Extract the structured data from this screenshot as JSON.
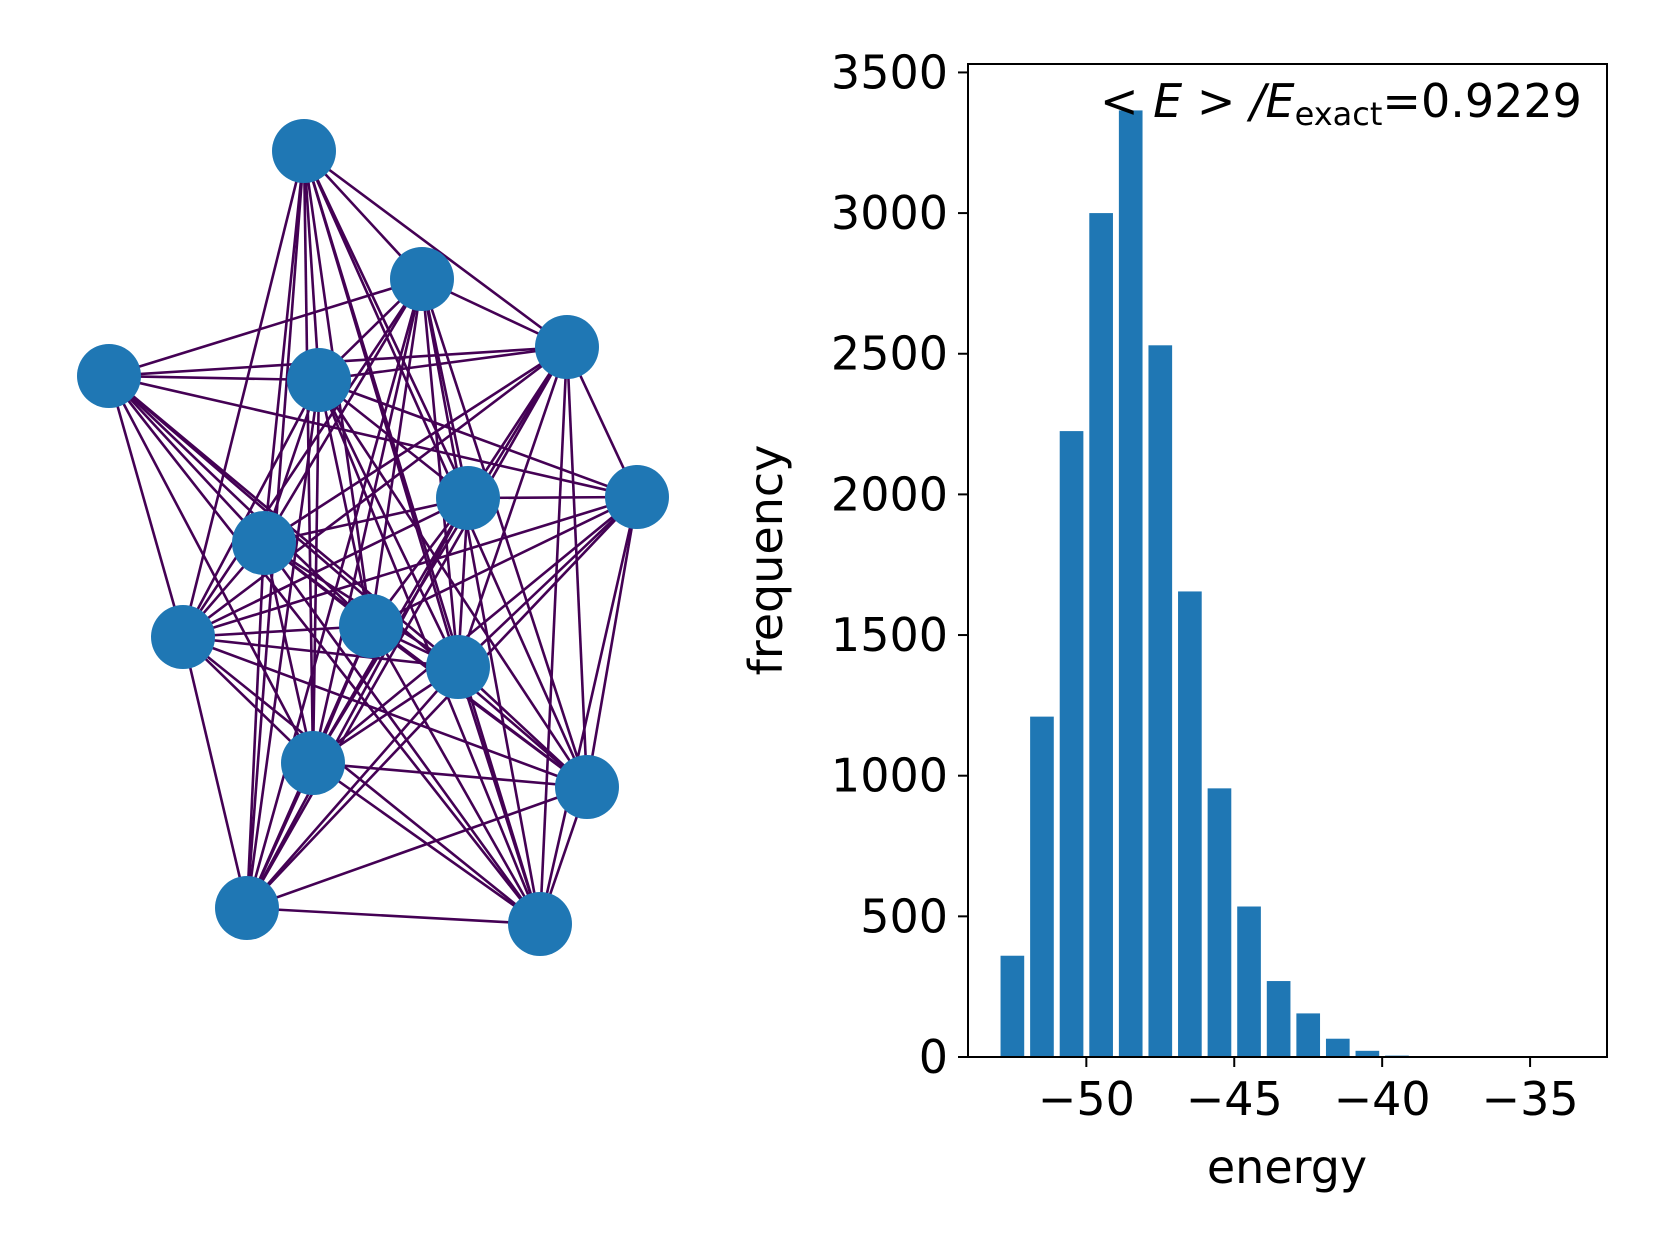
{
  "chart_data": [
    {
      "type": "network",
      "nodes": [
        {
          "id": 0
        },
        {
          "id": 1
        },
        {
          "id": 2
        },
        {
          "id": 3
        },
        {
          "id": 4
        },
        {
          "id": 5
        },
        {
          "id": 6
        },
        {
          "id": 7
        },
        {
          "id": 8
        },
        {
          "id": 9
        },
        {
          "id": 10
        },
        {
          "id": 11
        },
        {
          "id": 12
        },
        {
          "id": 13
        },
        {
          "id": 14
        }
      ],
      "edges": [
        [
          0,
          1
        ],
        [
          0,
          2
        ],
        [
          0,
          4
        ],
        [
          0,
          5
        ],
        [
          0,
          7
        ],
        [
          0,
          8
        ],
        [
          0,
          9
        ],
        [
          0,
          10
        ],
        [
          0,
          11
        ],
        [
          0,
          12
        ],
        [
          0,
          13
        ],
        [
          0,
          14
        ],
        [
          1,
          2
        ],
        [
          1,
          3
        ],
        [
          1,
          4
        ],
        [
          1,
          5
        ],
        [
          1,
          7
        ],
        [
          1,
          8
        ],
        [
          1,
          9
        ],
        [
          1,
          10
        ],
        [
          1,
          11
        ],
        [
          1,
          12
        ],
        [
          1,
          13
        ],
        [
          1,
          14
        ],
        [
          2,
          3
        ],
        [
          2,
          4
        ],
        [
          2,
          5
        ],
        [
          2,
          6
        ],
        [
          2,
          7
        ],
        [
          2,
          8
        ],
        [
          2,
          10
        ],
        [
          2,
          11
        ],
        [
          2,
          12
        ],
        [
          2,
          13
        ],
        [
          2,
          14
        ],
        [
          3,
          4
        ],
        [
          3,
          6
        ],
        [
          3,
          7
        ],
        [
          3,
          8
        ],
        [
          3,
          9
        ],
        [
          3,
          10
        ],
        [
          3,
          11
        ],
        [
          3,
          12
        ],
        [
          3,
          14
        ],
        [
          4,
          5
        ],
        [
          4,
          6
        ],
        [
          4,
          7
        ],
        [
          4,
          8
        ],
        [
          4,
          9
        ],
        [
          4,
          10
        ],
        [
          4,
          11
        ],
        [
          4,
          12
        ],
        [
          4,
          13
        ],
        [
          4,
          14
        ],
        [
          5,
          6
        ],
        [
          5,
          7
        ],
        [
          5,
          8
        ],
        [
          5,
          9
        ],
        [
          5,
          10
        ],
        [
          5,
          11
        ],
        [
          5,
          13
        ],
        [
          6,
          8
        ],
        [
          6,
          9
        ],
        [
          6,
          10
        ],
        [
          6,
          11
        ],
        [
          6,
          12
        ],
        [
          6,
          13
        ],
        [
          6,
          14
        ],
        [
          7,
          8
        ],
        [
          7,
          9
        ],
        [
          7,
          10
        ],
        [
          7,
          11
        ],
        [
          7,
          12
        ],
        [
          7,
          13
        ],
        [
          7,
          14
        ],
        [
          8,
          9
        ],
        [
          8,
          10
        ],
        [
          8,
          11
        ],
        [
          8,
          12
        ],
        [
          8,
          13
        ],
        [
          8,
          14
        ],
        [
          9,
          10
        ],
        [
          9,
          11
        ],
        [
          9,
          12
        ],
        [
          9,
          13
        ],
        [
          9,
          14
        ],
        [
          10,
          11
        ],
        [
          10,
          12
        ],
        [
          10,
          13
        ],
        [
          10,
          14
        ],
        [
          11,
          12
        ],
        [
          11,
          13
        ],
        [
          11,
          14
        ],
        [
          12,
          13
        ],
        [
          12,
          14
        ],
        [
          13,
          14
        ]
      ],
      "node_color": "#1f77b4",
      "edge_color": "#440154"
    },
    {
      "type": "bar",
      "x": [
        -52.5,
        -51.5,
        -50.5,
        -49.5,
        -48.5,
        -47.5,
        -46.5,
        -45.5,
        -44.5,
        -43.5,
        -42.5,
        -41.5,
        -40.5,
        -39.5
      ],
      "values": [
        360,
        1210,
        2225,
        3000,
        3365,
        2530,
        1655,
        955,
        535,
        270,
        155,
        65,
        22,
        5
      ],
      "xlabel": "energy",
      "ylabel": "frequency",
      "xlim": [
        -54,
        -32.4
      ],
      "ylim": [
        0,
        3530
      ],
      "xticks": [
        -50,
        -45,
        -40,
        -35
      ],
      "xtick_labels": [
        "−50",
        "−45",
        "−40",
        "−35"
      ],
      "yticks": [
        0,
        500,
        1000,
        1500,
        2000,
        2500,
        3000,
        3500
      ],
      "ytick_labels": [
        "0",
        "500",
        "1000",
        "1500",
        "2000",
        "2500",
        "3000",
        "3500"
      ],
      "annotation": {
        "prefix": "< E > /E",
        "subscript": "exact",
        "suffix": "=0.9229"
      },
      "bar_color": "#1f77b4"
    }
  ]
}
